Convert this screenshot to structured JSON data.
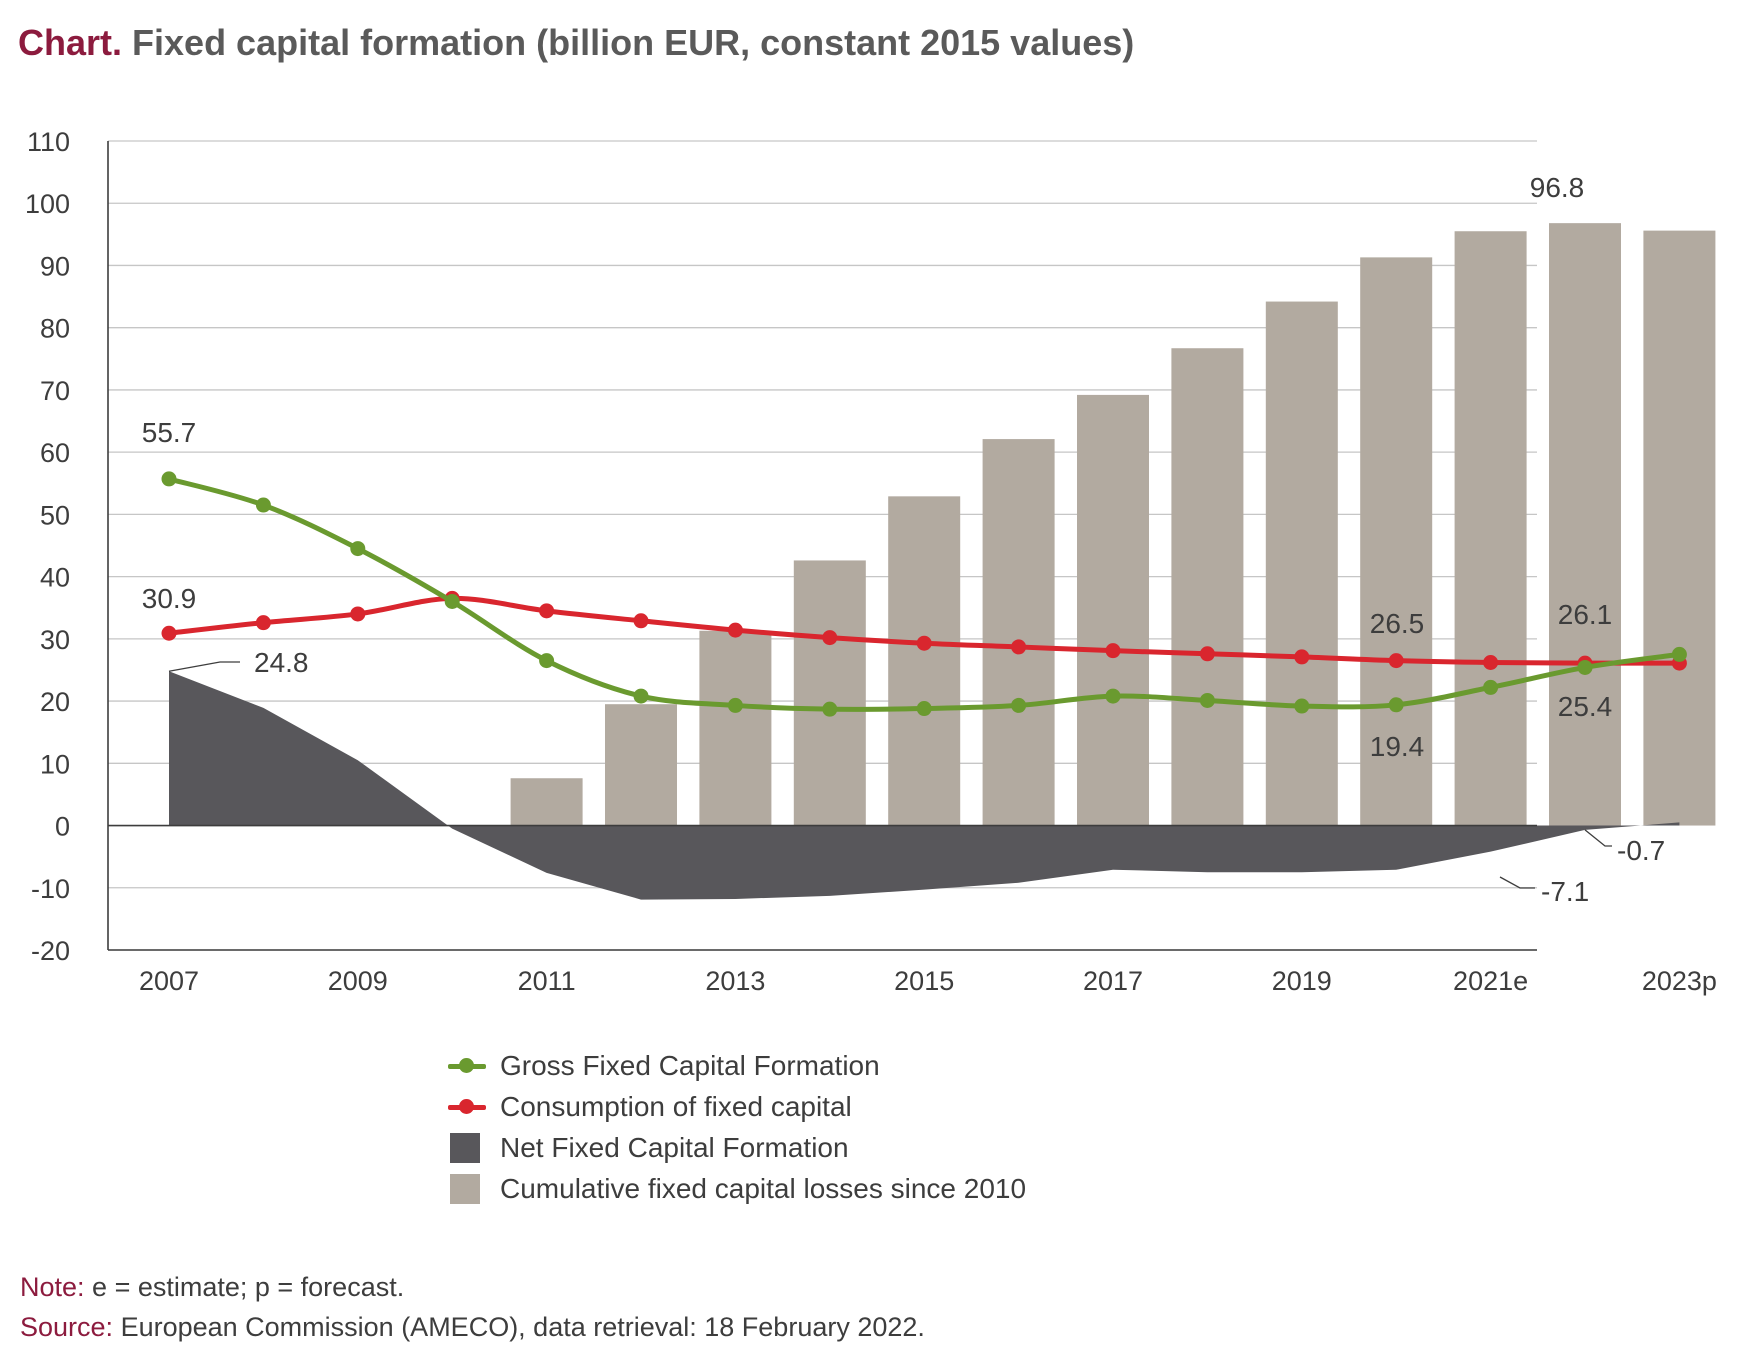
{
  "title": {
    "lead": "Chart.",
    "text": "Fixed capital formation (billion EUR, constant 2015 values)"
  },
  "chart_data": {
    "type": "bar",
    "title": "Fixed capital formation (billion EUR, constant 2015 values)",
    "years": [
      2007,
      2008,
      2009,
      2010,
      2011,
      2012,
      2013,
      2014,
      2015,
      2016,
      2017,
      2018,
      2019,
      2020,
      2021,
      2022,
      2023
    ],
    "x_tick_labels": [
      "2007",
      "2009",
      "2011",
      "2013",
      "2015",
      "2017",
      "2019",
      "2021e",
      "2023p"
    ],
    "ylim": [
      -20,
      110
    ],
    "y_ticks": [
      -20,
      -10,
      0,
      10,
      20,
      30,
      40,
      50,
      60,
      70,
      80,
      90,
      100,
      110
    ],
    "grid": true,
    "legend_position": "bottom",
    "series": [
      {
        "name": "Gross Fixed Capital Formation",
        "type": "line",
        "color": "#6a9a2f",
        "values": [
          55.7,
          51.5,
          44.5,
          36,
          26.5,
          20.8,
          19.3,
          18.7,
          18.8,
          19.3,
          20.8,
          20.1,
          19.2,
          19.4,
          22.2,
          25.4,
          27.5
        ]
      },
      {
        "name": "Consumption of fixed capital",
        "type": "line",
        "color": "#d9262e",
        "values": [
          30.9,
          32.6,
          34,
          36.5,
          34.5,
          32.9,
          31.4,
          30.2,
          29.3,
          28.7,
          28.1,
          27.6,
          27.1,
          26.5,
          26.2,
          26.1,
          26.1
        ]
      },
      {
        "name": "Net Fixed Capital Formation",
        "type": "area",
        "color": "#58575b",
        "values": [
          24.8,
          18.9,
          10.5,
          -0.5,
          -7.6,
          -11.9,
          -11.8,
          -11.3,
          -10.3,
          -9.2,
          -7.1,
          -7.5,
          -7.5,
          -7.1,
          -4.2,
          -0.7,
          0.5
        ]
      },
      {
        "name": "Cumulative fixed capital losses since 2010",
        "type": "bar",
        "color": "#b2aaa0",
        "values": [
          null,
          null,
          null,
          null,
          7.6,
          19.5,
          31.3,
          42.6,
          52.9,
          62.1,
          69.2,
          76.7,
          84.2,
          91.3,
          95.5,
          96.8,
          95.6
        ]
      }
    ],
    "annotations": [
      {
        "text": "55.7",
        "series": "Gross Fixed Capital Formation",
        "year": 2007
      },
      {
        "text": "30.9",
        "series": "Consumption of fixed capital",
        "year": 2007
      },
      {
        "text": "24.8",
        "series": "Net Fixed Capital Formation",
        "year": 2007
      },
      {
        "text": "96.8",
        "series": "Cumulative fixed capital losses since 2010",
        "year": 2022
      },
      {
        "text": "26.5",
        "series": "Consumption of fixed capital",
        "year": 2020
      },
      {
        "text": "26.1",
        "series": "Consumption of fixed capital",
        "year": 2022
      },
      {
        "text": "19.4",
        "series": "Gross Fixed Capital Formation",
        "year": 2020
      },
      {
        "text": "25.4",
        "series": "Gross Fixed Capital Formation",
        "year": 2022
      },
      {
        "text": "-0.7",
        "series": "Net Fixed Capital Formation",
        "year": 2022
      },
      {
        "text": "-7.1",
        "series": "Net Fixed Capital Formation",
        "year": 2020
      }
    ]
  },
  "legend": [
    {
      "label": "Gross Fixed Capital Formation",
      "kind": "line",
      "color": "#6a9a2f"
    },
    {
      "label": "Consumption of fixed capital",
      "kind": "line",
      "color": "#d9262e"
    },
    {
      "label": "Net Fixed Capital Formation",
      "kind": "box",
      "color": "#58575b"
    },
    {
      "label": "Cumulative fixed capital losses since 2010",
      "kind": "box",
      "color": "#b2aaa0"
    }
  ],
  "notes": {
    "note_label": "Note:",
    "note_text": " e = estimate; p = forecast.",
    "source_label": "Source:",
    "source_text": " European Commission (AMECO), data retrieval: 18 February 2022."
  }
}
